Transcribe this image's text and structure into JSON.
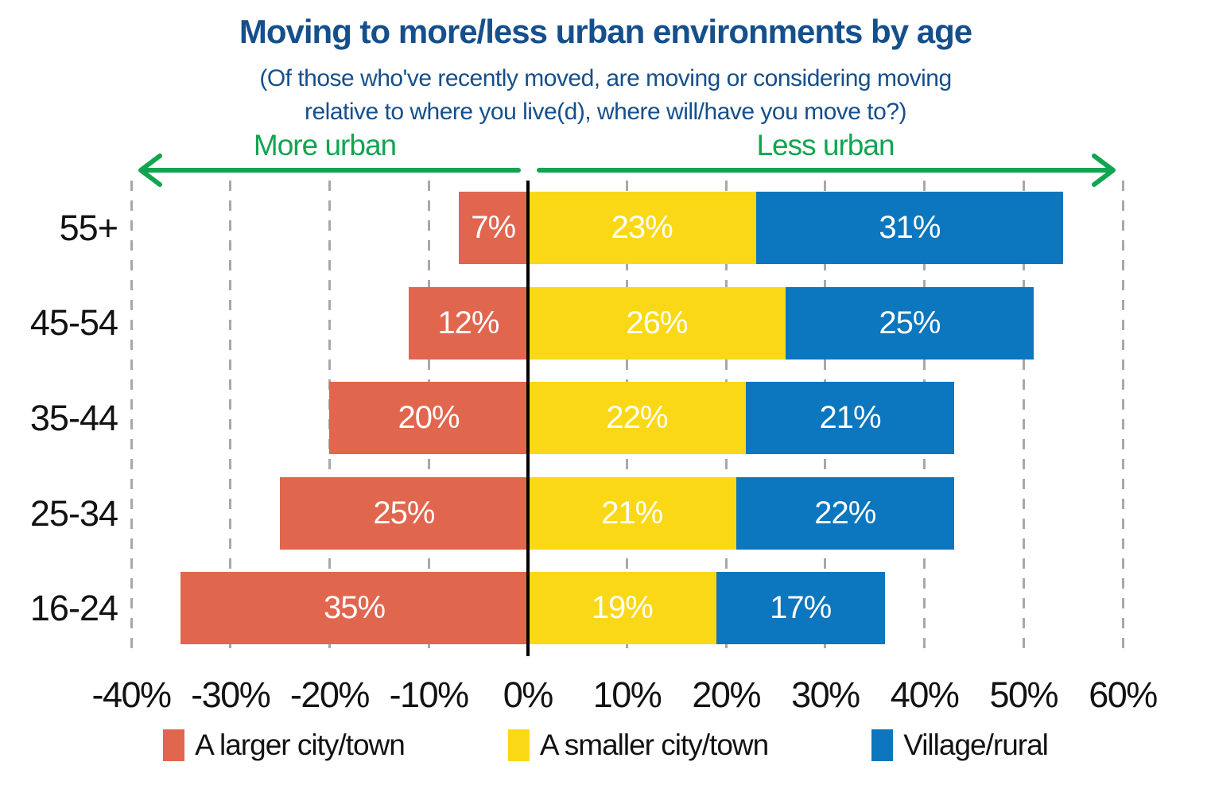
{
  "title": "Moving to more/less urban environments by age",
  "subtitle_line1": "(Of those who've recently moved, are moving or considering moving",
  "subtitle_line2": "relative to where you live(d), where will/have you move to?)",
  "direction_labels": {
    "left": "More urban",
    "right": "Less urban"
  },
  "colors": {
    "title_text": "#154F8C",
    "arrow_green": "#11A551",
    "gridline_gray": "#A8A8A8",
    "zero_line": "#000000",
    "axis_text": "#121212",
    "bar_value_text": "#ffffff",
    "background": "#ffffff"
  },
  "chart_data": {
    "type": "bar",
    "orientation": "horizontal-diverging",
    "title": "Moving to more/less urban environments by age",
    "subtitle": "(Of those who've recently moved, are moving or considering moving relative to where you live(d), where will/have you move to?)",
    "categories": [
      "55+",
      "45-54",
      "35-44",
      "25-34",
      "16-24"
    ],
    "series": [
      {
        "name": "A larger city/town",
        "color": "#E0664E",
        "side": "negative",
        "values": [
          7,
          12,
          20,
          25,
          35
        ]
      },
      {
        "name": "A smaller city/town",
        "color": "#FBD816",
        "side": "positive",
        "values": [
          23,
          26,
          22,
          21,
          19
        ]
      },
      {
        "name": "Village/rural",
        "color": "#0C76BE",
        "side": "positive",
        "values": [
          31,
          25,
          21,
          22,
          17
        ]
      }
    ],
    "xlim": [
      -40,
      60
    ],
    "x_tick_labels": [
      "-40%",
      "-30%",
      "-20%",
      "-10%",
      "0%",
      "10%",
      "20%",
      "30%",
      "40%",
      "50%",
      "60%"
    ],
    "grid": "dashed-vertical",
    "zero_line": true,
    "legend_position": "bottom",
    "value_label_format": "{value}%"
  }
}
